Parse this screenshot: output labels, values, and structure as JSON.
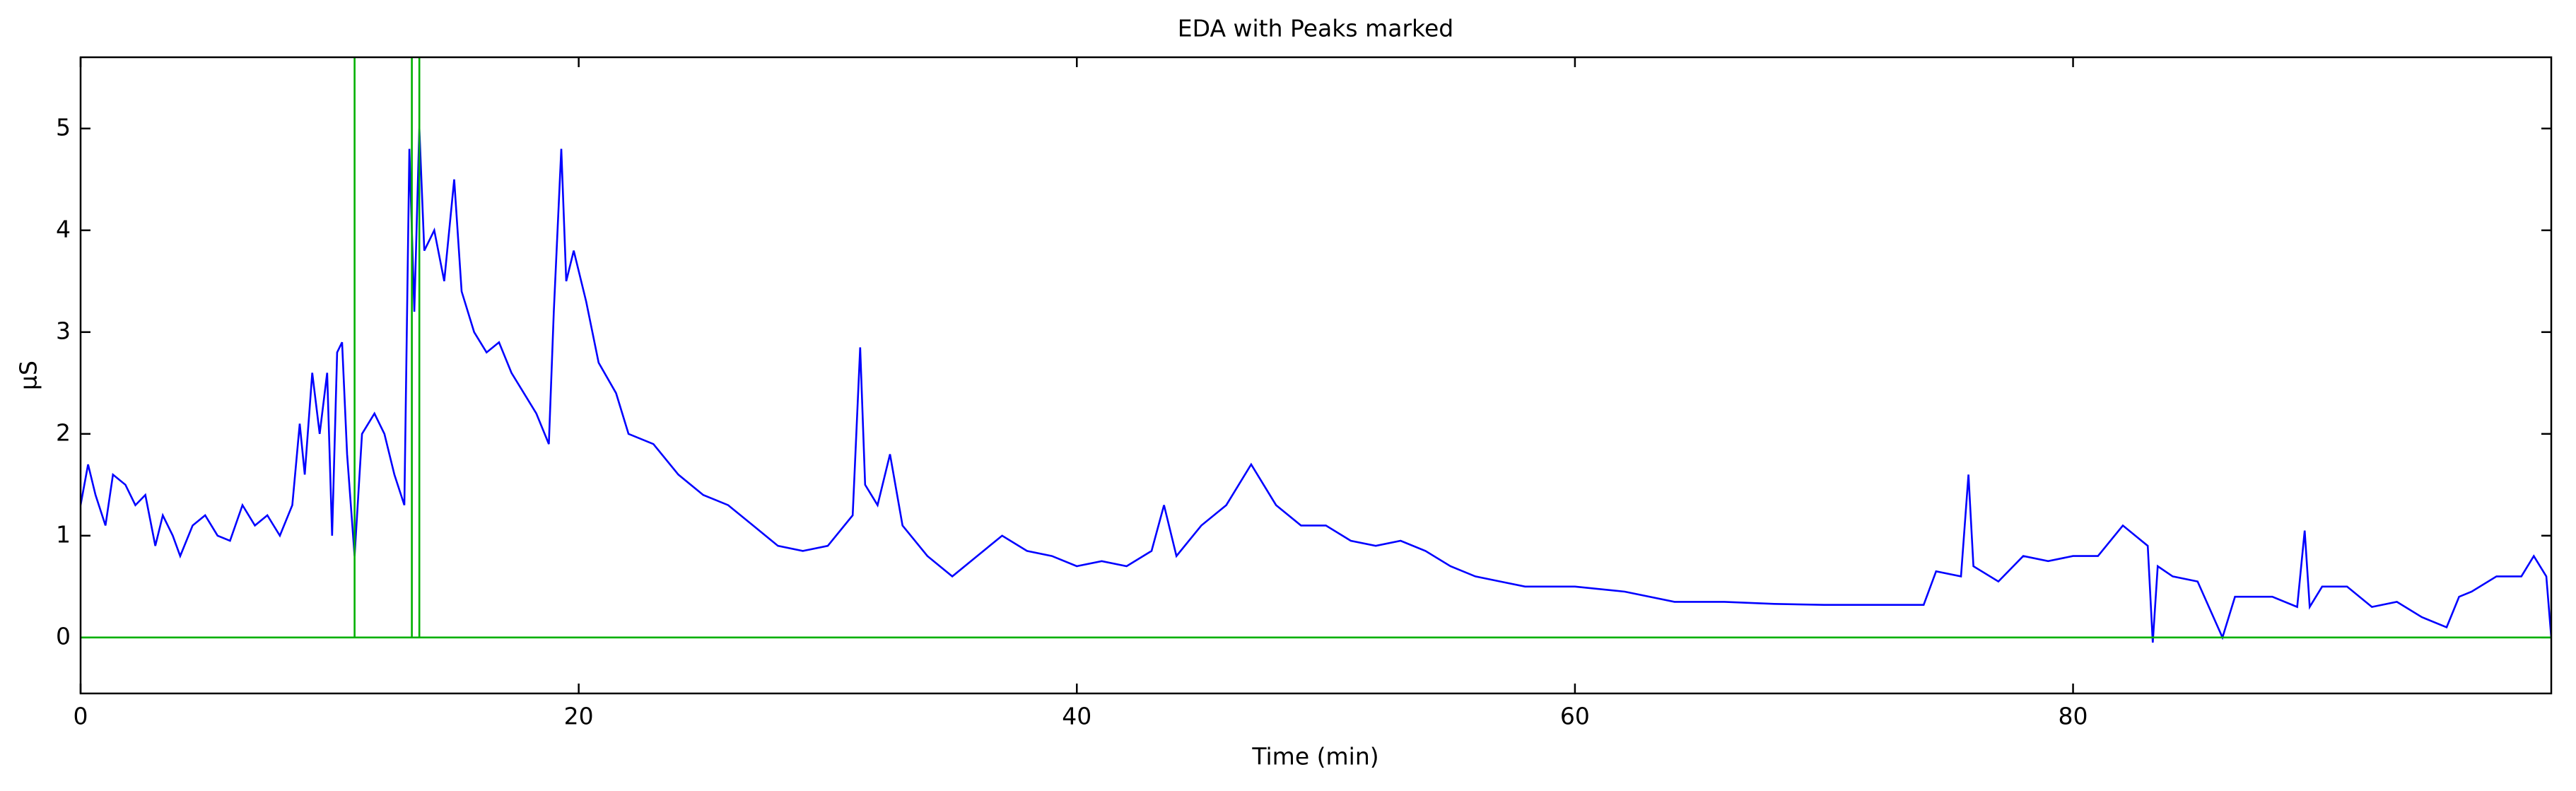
{
  "chart_data": {
    "type": "line",
    "title": "EDA with Peaks marked",
    "x_label": "Time (min)",
    "y_label": "μS",
    "xlim": [
      0,
      99.2
    ],
    "ylim": [
      -0.55,
      5.7
    ],
    "xticks": [
      0,
      20,
      40,
      60,
      80
    ],
    "yticks": [
      0,
      1,
      2,
      3,
      4,
      5
    ],
    "grid": false,
    "series": [
      {
        "name": "EDA",
        "color": "#0000ff",
        "x": [
          0,
          0.3,
          0.6,
          1,
          1.3,
          1.8,
          2.2,
          2.6,
          3,
          3.3,
          3.7,
          4,
          4.5,
          5,
          5.5,
          6,
          6.5,
          7,
          7.5,
          8,
          8.5,
          8.8,
          9,
          9.3,
          9.6,
          9.9,
          10.1,
          10.3,
          10.5,
          10.7,
          11,
          11.3,
          11.8,
          12.2,
          12.6,
          13,
          13.2,
          13.4,
          13.6,
          13.8,
          14.2,
          14.6,
          15,
          15.3,
          15.8,
          16.3,
          16.8,
          17.3,
          17.8,
          18.3,
          18.8,
          19,
          19.3,
          19.5,
          19.8,
          20.3,
          20.8,
          21.5,
          22,
          23,
          24,
          25,
          26,
          27,
          28,
          29,
          30,
          31,
          31.3,
          31.5,
          32,
          32.5,
          33,
          34,
          35,
          36,
          37,
          38,
          39,
          40,
          41,
          42,
          43,
          43.5,
          44,
          45,
          46,
          47,
          48,
          49,
          50,
          51,
          52,
          53,
          54,
          55,
          56,
          57,
          58,
          59,
          60,
          62,
          64,
          66,
          68,
          70,
          72,
          74,
          74.5,
          75.5,
          75.8,
          76,
          77,
          78,
          79,
          80,
          81,
          82,
          83,
          83.2,
          83.4,
          84,
          85,
          86,
          86.5,
          87,
          88,
          89,
          89.3,
          89.5,
          90,
          91,
          92,
          93,
          94,
          95,
          95.5,
          96,
          97,
          98,
          98.5,
          99,
          99.2
        ],
        "values": [
          1.3,
          1.7,
          1.4,
          1.1,
          1.6,
          1.5,
          1.3,
          1.4,
          0.9,
          1.2,
          1.0,
          0.8,
          1.1,
          1.2,
          1.0,
          0.95,
          1.3,
          1.1,
          1.2,
          1.0,
          1.3,
          2.1,
          1.6,
          2.6,
          2.0,
          2.6,
          1.0,
          2.8,
          2.9,
          1.8,
          0.8,
          2.0,
          2.2,
          2.0,
          1.6,
          1.3,
          4.8,
          3.2,
          5.0,
          3.8,
          4.0,
          3.5,
          4.5,
          3.4,
          3.0,
          2.8,
          2.9,
          2.6,
          2.4,
          2.2,
          1.9,
          3.2,
          4.8,
          3.5,
          3.8,
          3.3,
          2.7,
          2.4,
          2.0,
          1.9,
          1.6,
          1.4,
          1.3,
          1.1,
          0.9,
          0.85,
          0.9,
          1.2,
          2.85,
          1.5,
          1.3,
          1.8,
          1.1,
          0.8,
          0.6,
          0.8,
          1.0,
          0.85,
          0.8,
          0.7,
          0.75,
          0.7,
          0.85,
          1.3,
          0.8,
          1.1,
          1.3,
          1.7,
          1.3,
          1.1,
          1.1,
          0.95,
          0.9,
          0.95,
          0.85,
          0.7,
          0.6,
          0.55,
          0.5,
          0.5,
          0.5,
          0.45,
          0.35,
          0.35,
          0.33,
          0.32,
          0.32,
          0.32,
          0.65,
          0.6,
          1.6,
          0.7,
          0.55,
          0.8,
          0.75,
          0.8,
          0.8,
          1.1,
          0.9,
          -0.05,
          0.7,
          0.6,
          0.55,
          0.0,
          0.4,
          0.4,
          0.4,
          0.3,
          1.05,
          0.3,
          0.5,
          0.5,
          0.3,
          0.35,
          0.2,
          0.1,
          0.4,
          0.45,
          0.6,
          0.6,
          0.8,
          0.6,
          0
        ]
      },
      {
        "name": "Peaks",
        "color": "#00b000",
        "x": [
          0,
          11,
          11,
          11,
          13.3,
          13.3,
          13.3,
          13.6,
          13.6,
          13.6,
          99.2
        ],
        "values": [
          0,
          0,
          6,
          0,
          0,
          6,
          0,
          0,
          6,
          0,
          0
        ]
      }
    ]
  }
}
